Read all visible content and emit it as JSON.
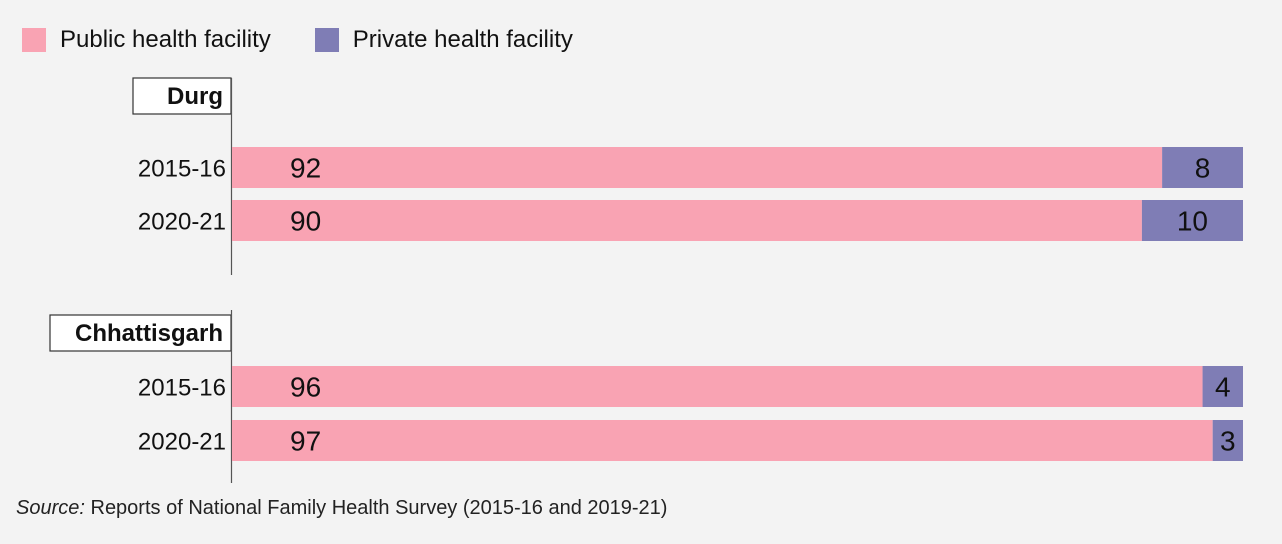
{
  "legend": [
    {
      "label": "Public health facility",
      "color": "#f9a3b3"
    },
    {
      "label": "Private health facility",
      "color": "#7f7db5"
    }
  ],
  "source": {
    "prefix": "Source:",
    "text": " Reports of National Family Health Survey (2015-16 and 2019-21)"
  },
  "chart_data": {
    "type": "bar",
    "orientation": "horizontal",
    "stacked": true,
    "xlim": [
      0,
      100
    ],
    "groups": [
      {
        "name": "Durg",
        "categories": [
          "2015-16",
          "2020-21"
        ],
        "series": [
          {
            "name": "Public health facility",
            "values": [
              92,
              90
            ]
          },
          {
            "name": "Private health facility",
            "values": [
              8,
              10
            ]
          }
        ]
      },
      {
        "name": "Chhattisgarh",
        "categories": [
          "2015-16",
          "2020-21"
        ],
        "series": [
          {
            "name": "Public health facility",
            "values": [
              96,
              97
            ]
          },
          {
            "name": "Private health facility",
            "values": [
              4,
              3
            ]
          }
        ]
      }
    ]
  }
}
